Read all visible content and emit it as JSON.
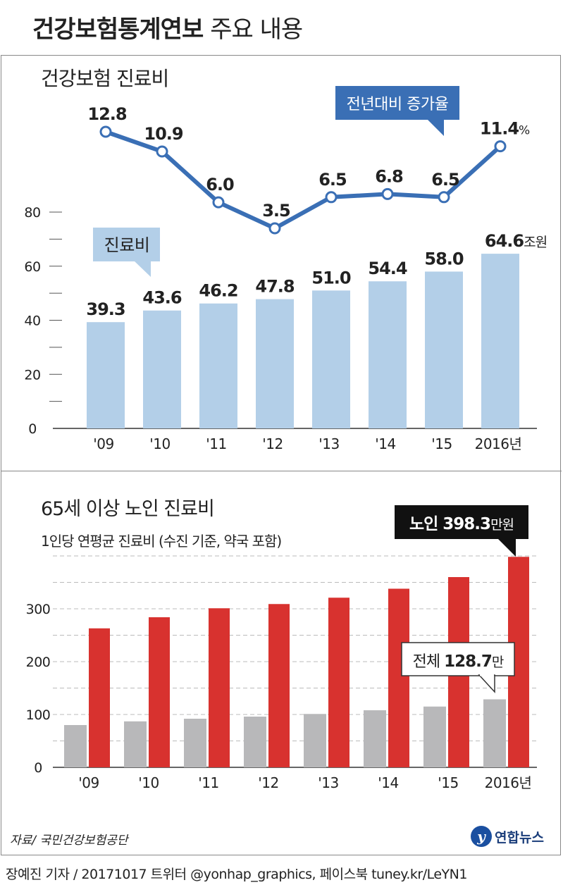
{
  "header": {
    "title_bold": "건강보험통계연보",
    "title_normal": "주요 내용"
  },
  "chart_data": [
    {
      "type": "bar",
      "title": "건강보험 진료비",
      "categories": [
        "'09",
        "'10",
        "'11",
        "'12",
        "'13",
        "'14",
        "'15",
        "2016년"
      ],
      "series": [
        {
          "name": "진료비",
          "values": [
            39.3,
            43.6,
            46.2,
            47.8,
            51.0,
            54.4,
            58.0,
            64.6
          ]
        }
      ],
      "value_labels": [
        "39.3",
        "43.6",
        "46.2",
        "47.8",
        "51.0",
        "54.4",
        "58.0",
        "64.6"
      ],
      "last_value_unit": "조원",
      "ylim": [
        0,
        80
      ],
      "yticks": [
        "0",
        "20",
        "40",
        "60",
        "80"
      ],
      "callout": "진료비",
      "bar_color": "#b3cfe8"
    },
    {
      "type": "line",
      "categories": [
        "'09",
        "'10",
        "'11",
        "'12",
        "'13",
        "'14",
        "'15",
        "2016년"
      ],
      "series": [
        {
          "name": "전년대비 증가율",
          "values": [
            12.8,
            10.9,
            6.0,
            3.5,
            6.5,
            6.8,
            6.5,
            11.4
          ]
        }
      ],
      "value_labels": [
        "12.8",
        "10.9",
        "6.0",
        "3.5",
        "6.5",
        "6.8",
        "6.5",
        "11.4"
      ],
      "last_value_unit": "%",
      "callout": "전년대비 증가율",
      "line_color": "#3a6fb5"
    },
    {
      "type": "bar",
      "title": "65세 이상 노인 진료비",
      "subtitle": "1인당 연평균 진료비 (수진 기준, 약국 포함)",
      "categories": [
        "'09",
        "'10",
        "'11",
        "'12",
        "'13",
        "'14",
        "'15",
        "2016년"
      ],
      "series": [
        {
          "name": "전체",
          "values": [
            80,
            87,
            92,
            96,
            101,
            108,
            115,
            128.7
          ],
          "color": "#b8b8ba"
        },
        {
          "name": "노인",
          "values": [
            263,
            284,
            301,
            309,
            321,
            338,
            360,
            398.3
          ],
          "color": "#d8322f"
        }
      ],
      "ylim": [
        0,
        420
      ],
      "yticks": [
        "0",
        "100",
        "200",
        "300"
      ],
      "callout_elderly": {
        "label": "노인",
        "value": "398.3",
        "unit": "만원"
      },
      "callout_total": {
        "label": "전체",
        "value": "128.7",
        "unit": "만"
      }
    }
  ],
  "footer": {
    "source": "자료/ 국민건강보험공단",
    "logo_mark": "y",
    "logo_text": "연합뉴스",
    "credit": "장예진 기자 / 20171017 트위터 @yonhap_graphics, 페이스북 tuney.kr/LeYN1"
  }
}
